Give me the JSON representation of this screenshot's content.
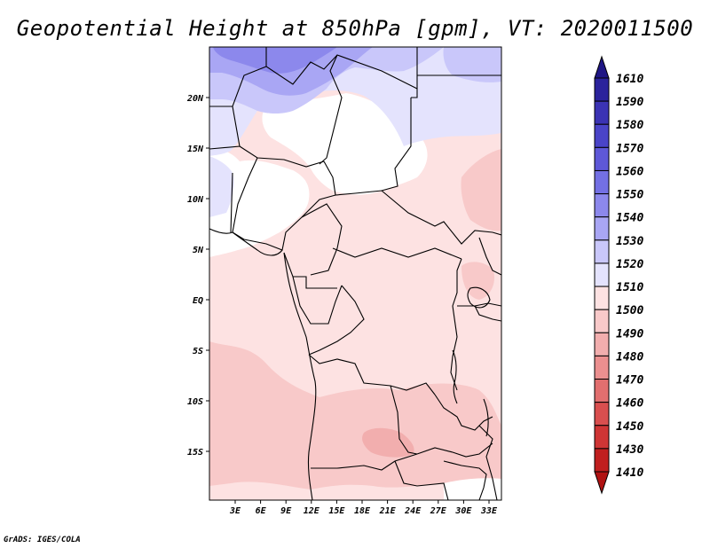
{
  "title": "Geopotential Height at 850hPa [gpm], VT: 2020011500",
  "credit": "GrADS: IGES/COLA",
  "map": {
    "lat_labels": [
      "20N",
      "15N",
      "10N",
      "5N",
      "EQ",
      "5S",
      "10S",
      "15S"
    ],
    "lon_labels": [
      "3E",
      "6E",
      "9E",
      "12E",
      "15E",
      "18E",
      "21E",
      "24E",
      "27E",
      "30E",
      "33E"
    ]
  },
  "colorbar": {
    "labels": [
      "1610",
      "1590",
      "1580",
      "1570",
      "1560",
      "1550",
      "1540",
      "1530",
      "1520",
      "1510",
      "1500",
      "1490",
      "1480",
      "1470",
      "1460",
      "1450",
      "1430",
      "1410"
    ],
    "colors": [
      "#1f1685",
      "#2b239c",
      "#3b33b4",
      "#4a44c8",
      "#5e58d8",
      "#7370e4",
      "#8c88ec",
      "#a9a6f4",
      "#c9c7fa",
      "#e4e3fd",
      "#fde2e2",
      "#f8c9c9",
      "#f2aeae",
      "#eb8f8f",
      "#e26f6f",
      "#d94f4f",
      "#cf3535",
      "#c01f1f",
      "#b01212"
    ]
  }
}
